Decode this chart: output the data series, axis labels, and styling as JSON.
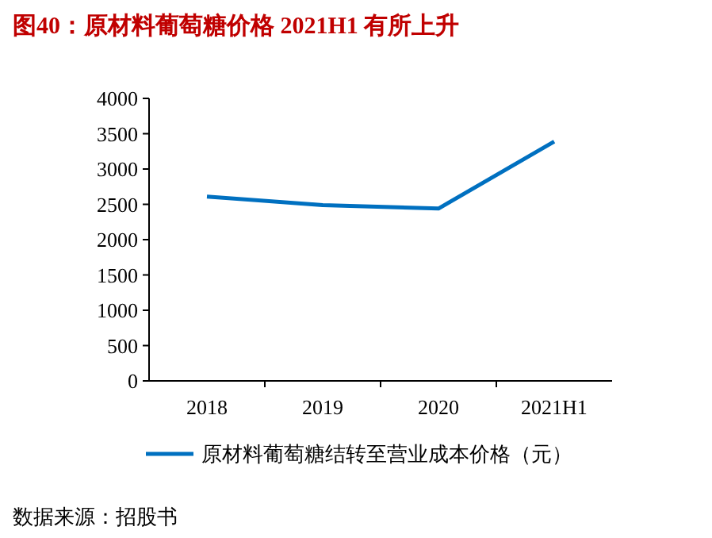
{
  "chart_data": {
    "type": "line",
    "title": "图40：原材料葡萄糖价格 2021H1 有所上升",
    "categories": [
      "2018",
      "2019",
      "2020",
      "2021H1"
    ],
    "series": [
      {
        "name": "原材料葡萄糖结转至营业成本价格（元）",
        "color": "#0070c0",
        "values": [
          2610,
          2490,
          2440,
          3390
        ]
      }
    ],
    "ylim": [
      0,
      4000
    ],
    "yticks": [
      0,
      500,
      1000,
      1500,
      2000,
      2500,
      3000,
      3500,
      4000
    ],
    "legend": "bottom",
    "grid": false,
    "annotations": [
      "数据来源：招股书"
    ]
  }
}
